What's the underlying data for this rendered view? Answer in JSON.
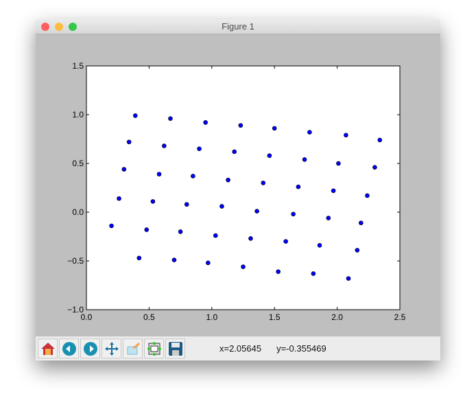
{
  "window": {
    "title": "Figure 1",
    "traffic_lights": {
      "close": "#fc605c",
      "minimize": "#fdbc40",
      "zoom": "#34c84a"
    }
  },
  "toolbar": {
    "buttons": [
      {
        "name": "home-button",
        "icon": "home-icon"
      },
      {
        "name": "back-button",
        "icon": "arrow-left-icon"
      },
      {
        "name": "forward-button",
        "icon": "arrow-right-icon"
      },
      {
        "name": "pan-button",
        "icon": "move-icon"
      },
      {
        "name": "zoom-button",
        "icon": "zoom-rect-icon"
      },
      {
        "name": "subplots-button",
        "icon": "subplots-icon"
      },
      {
        "name": "save-button",
        "icon": "floppy-icon"
      }
    ],
    "x_readout": "x=2.05645",
    "y_readout": "y=-0.355469"
  },
  "chart_data": {
    "type": "scatter",
    "xlim": [
      0.0,
      2.5
    ],
    "ylim": [
      -1.0,
      1.5
    ],
    "xticks": [
      "0.0",
      "0.5",
      "1.0",
      "1.5",
      "2.0",
      "2.5"
    ],
    "yticks": [
      "−1.0",
      "−0.5",
      "0.0",
      "0.5",
      "1.0",
      "1.5"
    ],
    "grid": false,
    "marker_color": "#0000ff",
    "x": [
      0.39,
      0.67,
      0.95,
      1.23,
      1.5,
      1.78,
      2.07,
      2.34,
      0.34,
      0.62,
      0.9,
      1.18,
      1.46,
      1.74,
      2.01,
      2.3,
      0.3,
      0.58,
      0.85,
      1.13,
      1.41,
      1.69,
      1.97,
      2.24,
      0.26,
      0.53,
      0.8,
      1.08,
      1.36,
      1.65,
      1.93,
      2.19,
      0.2,
      0.48,
      0.75,
      1.03,
      1.31,
      1.59,
      1.86,
      2.16,
      0.42,
      0.7,
      0.97,
      1.25,
      1.53,
      1.81,
      2.09
    ],
    "y": [
      0.99,
      0.96,
      0.92,
      0.89,
      0.86,
      0.82,
      0.79,
      0.74,
      0.72,
      0.68,
      0.65,
      0.62,
      0.58,
      0.54,
      0.5,
      0.46,
      0.44,
      0.39,
      0.37,
      0.33,
      0.3,
      0.26,
      0.22,
      0.17,
      0.14,
      0.11,
      0.08,
      0.06,
      0.01,
      -0.02,
      -0.06,
      -0.11,
      -0.14,
      -0.18,
      -0.2,
      -0.24,
      -0.27,
      -0.3,
      -0.34,
      -0.39,
      -0.47,
      -0.49,
      -0.52,
      -0.56,
      -0.61,
      -0.63,
      -0.68
    ]
  }
}
